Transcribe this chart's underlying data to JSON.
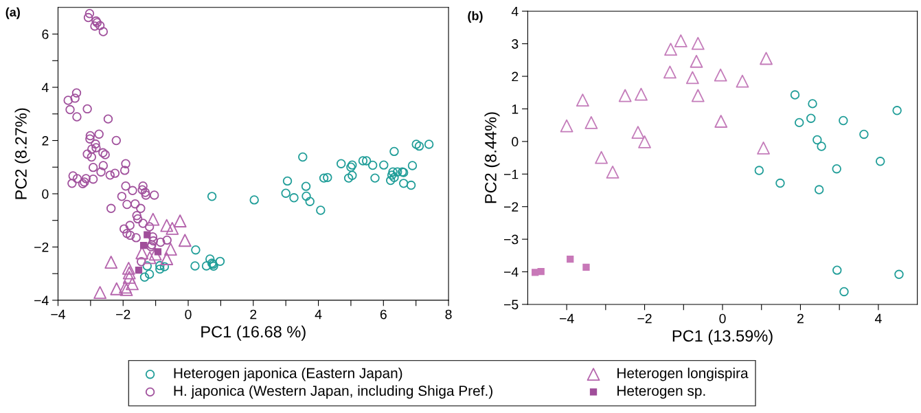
{
  "chart_data": [
    {
      "type": "scatter",
      "title": "(a)",
      "xlabel": "PC1 (16.68 %)",
      "ylabel": "PC2 (8.27%)",
      "legend": "bottom",
      "grid": false,
      "xlim": [
        -4,
        8
      ],
      "ylim": [
        -4,
        7
      ],
      "xticks": [
        {
          "value": -4,
          "label": "−4"
        },
        {
          "value": -3,
          "label": null
        },
        {
          "value": -2,
          "label": "−2"
        },
        {
          "value": -1,
          "label": null
        },
        0,
        {
          "value": 1,
          "label": null
        },
        2,
        {
          "value": 3,
          "label": null
        },
        4,
        {
          "value": 5,
          "label": null
        },
        6,
        {
          "value": 7,
          "label": null
        },
        8
      ],
      "yticks": [
        {
          "value": -4,
          "label": "−4"
        },
        {
          "value": -3,
          "label": null
        },
        {
          "value": -2,
          "label": "−2"
        },
        {
          "value": -1,
          "label": null
        },
        0,
        {
          "value": 1,
          "label": null
        },
        2,
        {
          "value": 3,
          "label": null
        },
        4,
        {
          "value": 5,
          "label": null
        },
        6
      ],
      "series": [
        {
          "name": "Heterogen japonica (Eastern Japan)",
          "color": "#1f9d98",
          "marker": "circle",
          "x": [
            0.73,
            2.03,
            3.05,
            3.0,
            3.25,
            3.52,
            3.62,
            3.63,
            3.74,
            4.07,
            4.17,
            4.28,
            4.7,
            4.93,
            5.04,
            5.0,
            5.04,
            5.37,
            5.48,
            5.67,
            5.74,
            6.01,
            6.33,
            6.22,
            6.26,
            6.29,
            6.33,
            6.43,
            6.58,
            6.62,
            6.62,
            6.85,
            6.89,
            7.01,
            7.1,
            7.4,
            0.23,
            0.21,
            0.56,
            0.67,
            0.73,
            0.78,
            0.76,
            0.98,
            -1.26,
            -1.34,
            -1.19,
            -0.87,
            -0.87,
            -0.73
          ],
          "values": [
            -0.1,
            -0.23,
            0.48,
            0.02,
            -0.15,
            1.38,
            0.28,
            -0.09,
            -0.29,
            -0.62,
            0.59,
            0.61,
            1.13,
            0.59,
            0.69,
            1.0,
            1.08,
            1.24,
            1.24,
            1.07,
            0.59,
            1.08,
            1.59,
            0.5,
            0.7,
            0.82,
            0.61,
            0.82,
            0.82,
            0.8,
            0.39,
            0.32,
            1.06,
            1.86,
            1.79,
            1.86,
            -2.11,
            -2.71,
            -2.71,
            -2.45,
            -2.61,
            -2.72,
            -2.65,
            -2.54,
            -2.71,
            -3.13,
            -3.02,
            -2.7,
            -2.83,
            -2.74
          ]
        },
        {
          "name": "H. japonica (Western Japan, including Shiga Pref.)",
          "color": "#a0509c",
          "marker": "circle",
          "x": [
            -3.03,
            -3.07,
            -2.83,
            -2.8,
            -2.87,
            -2.71,
            -2.61,
            -3.69,
            -3.48,
            -3.43,
            -3.63,
            -3.42,
            -3.1,
            -2.46,
            -3.01,
            -3.02,
            -2.74,
            -2.21,
            -2.85,
            -2.96,
            -2.83,
            -3.1,
            -2.97,
            -2.62,
            -2.55,
            -2.92,
            -2.61,
            -2.68,
            -1.92,
            -1.95,
            -2.4,
            -2.25,
            -3.54,
            -3.57,
            -3.41,
            -3.24,
            -3.19,
            -3.14,
            -2.92,
            -1.92,
            -1.71,
            -1.39,
            -1.41,
            -1.32,
            -1.3,
            -1.04,
            -2.04,
            -1.88,
            -1.63,
            -1.46,
            -2.37,
            -1.58,
            -1.55,
            -1.39,
            -1.19,
            -1.97,
            -1.79,
            -1.88,
            -1.78,
            -1.6,
            -1.09,
            -1.07,
            -0.85,
            -0.65,
            -1.12,
            -1.14,
            -1.44
          ],
          "values": [
            6.77,
            6.62,
            6.49,
            6.43,
            6.3,
            6.32,
            6.09,
            3.51,
            3.59,
            3.79,
            3.16,
            2.89,
            3.19,
            2.81,
            2.18,
            2.06,
            2.24,
            2.0,
            1.87,
            1.68,
            1.73,
            1.49,
            1.38,
            1.54,
            1.47,
            0.99,
            1.06,
            0.82,
            1.13,
            0.88,
            0.7,
            0.77,
            0.67,
            0.39,
            0.57,
            0.38,
            0.44,
            0.57,
            0.55,
            0.29,
            0.12,
            0.29,
            0.15,
            0.05,
            -0.05,
            -0.05,
            -0.1,
            -0.4,
            -0.38,
            -0.55,
            -0.55,
            -0.82,
            -0.94,
            -1.11,
            -1.24,
            -1.32,
            -1.19,
            -1.49,
            -1.56,
            -1.65,
            -1.62,
            -1.77,
            -1.82,
            -1.74,
            -1.92,
            -1.99,
            -2.55
          ]
        },
        {
          "name": "Heterogen longispira",
          "color": "#b565ad",
          "marker": "triangle",
          "x": [
            -1.08,
            -0.66,
            -0.49,
            -0.25,
            -0.1,
            -2.37,
            -1.42,
            -1.18,
            -1.01,
            -0.54,
            -0.66,
            -1.83,
            -1.81,
            -1.81,
            -1.72,
            -1.93,
            -2.2,
            -1.9,
            -2.71
          ],
          "values": [
            -0.96,
            -1.19,
            -1.3,
            -1.02,
            -1.75,
            -2.57,
            -2.22,
            -2.4,
            -2.27,
            -2.08,
            -2.44,
            -2.8,
            -2.97,
            -3.14,
            -3.38,
            -3.51,
            -3.57,
            -3.6,
            -3.71
          ]
        },
        {
          "name": "Heterogen sp.",
          "color": "#a04e9a",
          "marker": "square",
          "x": [
            -1.26,
            -1.37,
            -0.93,
            -1.52
          ],
          "values": [
            -1.54,
            -1.94,
            -2.18,
            -2.87
          ]
        }
      ]
    },
    {
      "type": "scatter",
      "title": "(b)",
      "xlabel": "PC1 (13.59%)",
      "ylabel": "PC2 (8.44%)",
      "grid": false,
      "xlim": [
        -5,
        5
      ],
      "ylim": [
        -5,
        4
      ],
      "xticks": [
        {
          "value": -4,
          "label": "−4"
        },
        {
          "value": -3,
          "label": null
        },
        {
          "value": -2,
          "label": "−2"
        },
        {
          "value": -1,
          "label": null
        },
        0,
        {
          "value": 1,
          "label": null
        },
        2,
        {
          "value": 3,
          "label": null
        },
        4
      ],
      "yticks": [
        {
          "value": -5,
          "label": "−5"
        },
        {
          "value": -4,
          "label": "−4"
        },
        {
          "value": -3,
          "label": "−3"
        },
        {
          "value": -2,
          "label": "−2"
        },
        {
          "value": -1,
          "label": "−1"
        },
        0,
        1,
        2,
        3,
        4
      ],
      "series": [
        {
          "color": "#1f9d98",
          "marker": "circle",
          "x": [
            1.86,
            2.31,
            4.48,
            2.27,
            1.97,
            3.1,
            3.63,
            2.43,
            2.54,
            4.05,
            2.93,
            0.94,
            1.48,
            2.48,
            2.94,
            4.53,
            3.12
          ],
          "values": [
            1.43,
            1.16,
            0.95,
            0.71,
            0.58,
            0.64,
            0.22,
            0.05,
            -0.15,
            -0.61,
            -0.84,
            -0.89,
            -1.28,
            -1.48,
            -3.95,
            -4.08,
            -4.61
          ]
        },
        {
          "color": "#c47cba",
          "marker": "triangle",
          "x": [
            -1.07,
            -1.33,
            -0.63,
            -0.67,
            -1.35,
            -0.77,
            -0.63,
            -2.5,
            -2.09,
            -3.59,
            -4.0,
            -3.37,
            -2.17,
            -2.0,
            -3.11,
            -2.82,
            -0.05,
            0.51,
            -0.04,
            1.05,
            1.12
          ],
          "values": [
            3.09,
            2.83,
            3.01,
            2.46,
            2.13,
            1.96,
            1.41,
            1.41,
            1.45,
            1.27,
            0.48,
            0.58,
            0.28,
            -0.01,
            -0.49,
            -0.94,
            2.04,
            1.85,
            0.62,
            -0.2,
            2.55
          ]
        },
        {
          "color": "#c878b8",
          "marker": "square",
          "x": [
            -4.81,
            -4.66,
            -3.91,
            -3.5
          ],
          "values": [
            -4.02,
            -3.99,
            -3.61,
            -3.86
          ]
        }
      ]
    }
  ]
}
